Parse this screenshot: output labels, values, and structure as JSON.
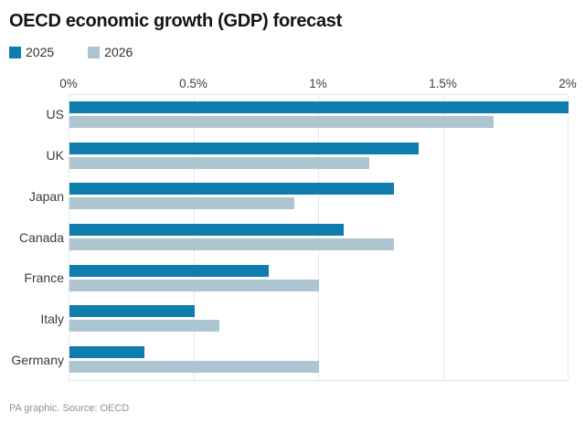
{
  "header": {
    "title": "OECD economic growth (GDP) forecast"
  },
  "footer": {
    "source_line": "PA graphic. Source: OECD"
  },
  "colors": {
    "series_2025": "#0e7dad",
    "series_2026": "#adc5d0",
    "gridline": "#e1e9ed",
    "axis_line": "#dde7ec",
    "tick_text": "#3f3f3f",
    "category_text": "#3b3b3b",
    "title_text": "#141414",
    "footer_text": "#909090",
    "background": "#ffffff"
  },
  "chart_data": {
    "type": "bar",
    "orientation": "horizontal",
    "title": "OECD economic growth (GDP) forecast",
    "xlabel": "",
    "ylabel": "",
    "unit": "%",
    "categories": [
      "US",
      "UK",
      "Japan",
      "Canada",
      "France",
      "Italy",
      "Germany"
    ],
    "series": [
      {
        "name": "2025",
        "color": "#0e7dad",
        "values": [
          2.0,
          1.4,
          1.3,
          1.1,
          0.8,
          0.5,
          0.3
        ]
      },
      {
        "name": "2026",
        "color": "#adc5d0",
        "values": [
          1.7,
          1.2,
          0.9,
          1.3,
          1.0,
          0.6,
          1.0
        ]
      }
    ],
    "x_ticks": [
      "0%",
      "0.5%",
      "1%",
      "1.5%",
      "2%"
    ],
    "x_tick_values": [
      0,
      0.5,
      1,
      1.5,
      2
    ],
    "xlim": [
      0,
      2
    ],
    "x_axis_position": "top",
    "grid": true,
    "legend_position": "top-left"
  }
}
